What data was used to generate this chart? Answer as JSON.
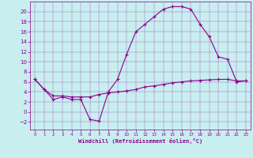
{
  "background_color": "#c8eef0",
  "plot_bg_color": "#c8eef0",
  "line_color": "#8b008b",
  "marker": "+",
  "xlabel": "Windchill (Refroidissement éolien,°C)",
  "xlim": [
    -0.5,
    23.5
  ],
  "ylim": [
    -3.5,
    22
  ],
  "xticks": [
    0,
    1,
    2,
    3,
    4,
    5,
    6,
    7,
    8,
    9,
    10,
    11,
    12,
    13,
    14,
    15,
    16,
    17,
    18,
    19,
    20,
    21,
    22,
    23
  ],
  "yticks": [
    -2,
    0,
    2,
    4,
    6,
    8,
    10,
    12,
    14,
    16,
    18,
    20
  ],
  "curve1_x": [
    0,
    1,
    2,
    3,
    4,
    5,
    6,
    7,
    8,
    9,
    10,
    11,
    12,
    13,
    14,
    15,
    16,
    17,
    18,
    19,
    20,
    21,
    22,
    23
  ],
  "curve1_y": [
    6.5,
    4.5,
    2.5,
    3.0,
    2.5,
    2.5,
    -1.5,
    -1.8,
    4.0,
    6.5,
    11.5,
    16.0,
    17.5,
    19.0,
    20.5,
    21.0,
    21.0,
    20.5,
    17.5,
    15.0,
    11.0,
    10.5,
    6.0,
    6.2
  ],
  "curve2_x": [
    0,
    1,
    2,
    3,
    4,
    5,
    6,
    7,
    8,
    9,
    10,
    11,
    12,
    13,
    14,
    15,
    16,
    17,
    18,
    19,
    20,
    21,
    22,
    23
  ],
  "curve2_y": [
    6.5,
    4.5,
    3.2,
    3.2,
    3.0,
    3.0,
    3.0,
    3.5,
    3.8,
    4.0,
    4.2,
    4.5,
    5.0,
    5.2,
    5.5,
    5.8,
    6.0,
    6.2,
    6.3,
    6.4,
    6.5,
    6.5,
    6.2,
    6.2
  ]
}
